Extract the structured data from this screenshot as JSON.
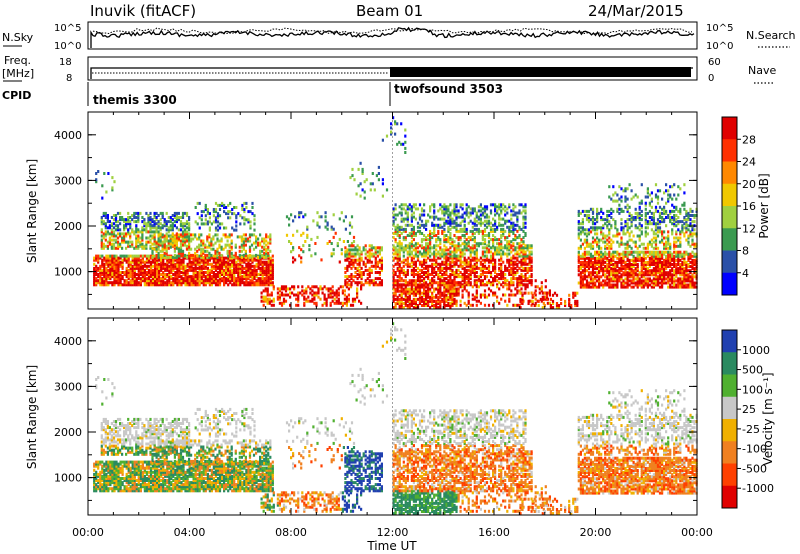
{
  "header": {
    "station": "Inuvik (fitACF)",
    "beam": "Beam 01",
    "date": "24/Mar/2015"
  },
  "status_panels": {
    "nsky_label": "N.Sky",
    "nsearch_label": "N.Search",
    "freq_label": "Freq.",
    "freq_unit": "[MHz]",
    "cpid_label": "CPID",
    "nave_label": "Nave",
    "nsky_ticks": [
      "10^5",
      "10^0"
    ],
    "nsearch_ticks": [
      "10^5",
      "10^0"
    ],
    "freq_ticks": [
      "18",
      "8"
    ],
    "nave_ticks": [
      "60",
      "0"
    ],
    "cpid_segments": [
      {
        "name": "themis 3300",
        "start_hour": 0
      },
      {
        "name": "twofsound 3503",
        "start_hour": 12
      }
    ]
  },
  "chart_data": [
    {
      "type": "heatmap",
      "title": "",
      "xlabel": "",
      "ylabel": "Slant Range [km]",
      "xlim": [
        "00:00",
        "00:00"
      ],
      "ylim": [
        180,
        4500
      ],
      "y_ticks": [
        "1000",
        "2000",
        "3000",
        "4000"
      ],
      "colorbar": {
        "label": "Power [dB]",
        "ticks": [
          "28",
          "24",
          "20",
          "16",
          "12",
          "8",
          "4"
        ],
        "colors": [
          "#e00000",
          "#ff3000",
          "#ff8800",
          "#f0c800",
          "#a0d040",
          "#3a9a50",
          "#2a50a8",
          "#0000ff"
        ]
      }
    },
    {
      "type": "heatmap",
      "title": "",
      "xlabel": "Time UT",
      "ylabel": "Slant Range [km]",
      "x_ticks": [
        "00:00",
        "04:00",
        "08:00",
        "12:00",
        "16:00",
        "20:00",
        "00:00"
      ],
      "ylim": [
        180,
        4500
      ],
      "y_ticks": [
        "1000",
        "2000",
        "3000",
        "4000"
      ],
      "colorbar": {
        "label": "Velocity [m s⁻¹]",
        "ticks": [
          "1000",
          "500",
          "100",
          "25",
          "-25",
          "-100",
          "-500",
          "-1000"
        ],
        "colors": [
          "#2040b0",
          "#2a8a60",
          "#50b030",
          "#c8c8c8",
          "#f0b000",
          "#f08020",
          "#ff4000",
          "#e00000"
        ]
      }
    }
  ]
}
